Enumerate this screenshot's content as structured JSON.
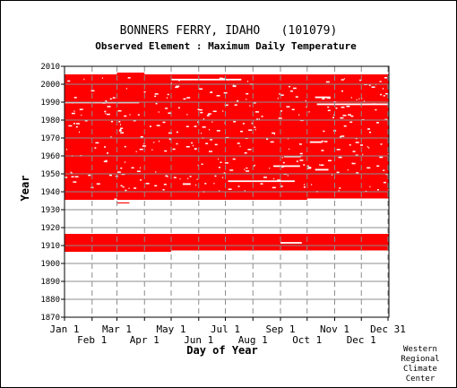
{
  "chart_data": {
    "type": "heatmap",
    "title": "BONNERS FERRY, IDAHO   (101079)",
    "subtitle": "Observed Element : Maximum Daily Temperature",
    "xlabel": "Day of Year",
    "ylabel": "Year",
    "ylim": [
      1870,
      2010
    ],
    "yticks": [
      1870,
      1880,
      1890,
      1900,
      1910,
      1920,
      1930,
      1940,
      1950,
      1960,
      1970,
      1980,
      1990,
      2000,
      2010
    ],
    "xlim": [
      1,
      366
    ],
    "xticks_top_row": [
      {
        "label": "Jan 1",
        "day": 1
      },
      {
        "label": "Mar 1",
        "day": 60
      },
      {
        "label": "May 1",
        "day": 121
      },
      {
        "label": "Jul 1",
        "day": 182
      },
      {
        "label": "Sep 1",
        "day": 244
      },
      {
        "label": "Nov 1",
        "day": 305
      },
      {
        "label": "Dec 31",
        "day": 365
      }
    ],
    "xticks_bottom_row": [
      {
        "label": "Feb 1",
        "day": 32
      },
      {
        "label": "Apr 1",
        "day": 91
      },
      {
        "label": "Jun 1",
        "day": 152
      },
      {
        "label": "Aug 1",
        "day": 213
      },
      {
        "label": "Oct 1",
        "day": 274
      },
      {
        "label": "Dec 1",
        "day": 335
      }
    ],
    "data_color": "#ff0000",
    "grid": true,
    "bands": [
      {
        "from_year": 1935.5,
        "to_year": 2005.5,
        "from_day": 1,
        "to_day": 366
      },
      {
        "from_year": 2005.5,
        "to_year": 2006.5,
        "from_day": 60,
        "to_day": 91
      },
      {
        "from_year": 1933.5,
        "to_year": 1934.5,
        "from_day": 60,
        "to_day": 74
      },
      {
        "from_year": 1914.5,
        "to_year": 1916.5,
        "from_day": 1,
        "to_day": 366
      },
      {
        "from_year": 1906.5,
        "to_year": 1914.5,
        "from_day": 1,
        "to_day": 366
      }
    ],
    "gaps": [
      {
        "year": 1934.5,
        "from_day": 1,
        "to_day": 366
      },
      {
        "year": 1935.8,
        "from_day": 57,
        "to_day": 60
      },
      {
        "year": 1935.8,
        "from_day": 274,
        "to_day": 366
      },
      {
        "year": 1989.8,
        "from_day": 1,
        "to_day": 85
      },
      {
        "year": 1988.8,
        "from_day": 285,
        "to_day": 366
      },
      {
        "year": 2002.6,
        "from_day": 121,
        "to_day": 200
      },
      {
        "year": 1945.9,
        "from_day": 185,
        "to_day": 260
      },
      {
        "year": 1959.7,
        "from_day": 248,
        "to_day": 267
      },
      {
        "year": 1967.7,
        "from_day": 277,
        "to_day": 291
      },
      {
        "year": 1992.7,
        "from_day": 283,
        "to_day": 300
      },
      {
        "year": 1944.3,
        "from_day": 134,
        "to_day": 143
      },
      {
        "year": 1952.3,
        "from_day": 283,
        "to_day": 298
      },
      {
        "year": 1954.3,
        "from_day": 236,
        "to_day": 266
      },
      {
        "year": 1911.5,
        "from_day": 244,
        "to_day": 268
      },
      {
        "year": 1906.8,
        "from_day": 121,
        "to_day": 366
      }
    ]
  },
  "credit": [
    "Western",
    "Regional",
    "Climate",
    "Center"
  ]
}
